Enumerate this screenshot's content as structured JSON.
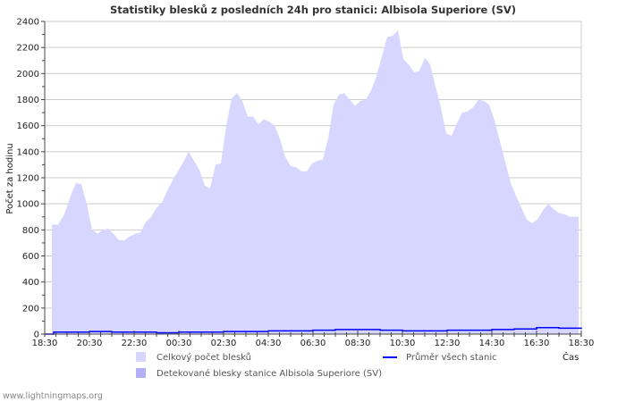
{
  "chart_data": {
    "type": "area",
    "title": "Statistiky blesků z posledních 24h pro stanici: Albisola Superiore (SV)",
    "xlabel": "Čas",
    "ylabel": "Počet za hodinu",
    "ylim": [
      0,
      2400
    ],
    "yticks": [
      "0",
      "200",
      "400",
      "600",
      "800",
      "1000",
      "1200",
      "1400",
      "1600",
      "1800",
      "2000",
      "2200",
      "2400"
    ],
    "xticks": [
      "18:30",
      "20:30",
      "22:30",
      "00:30",
      "02:30",
      "04:30",
      "06:30",
      "08:30",
      "10:30",
      "12:30",
      "14:30",
      "16:30",
      "18:30"
    ],
    "grid": true,
    "legend_placement": "bottom",
    "series": [
      {
        "name": "Celkový počet blesků",
        "color": "#d6d6ff",
        "x_hours": [
          0.32,
          0.6,
          0.88,
          1.2,
          1.4,
          1.64,
          1.88,
          2.12,
          2.36,
          2.6,
          2.84,
          3.08,
          3.32,
          3.56,
          3.8,
          4.04,
          4.28,
          4.52,
          4.76,
          5.0,
          5.24,
          5.48,
          5.72,
          5.96,
          6.2,
          6.44,
          6.68,
          6.92,
          7.16,
          7.4,
          7.64,
          7.88,
          8.12,
          8.36,
          8.6,
          8.84,
          9.08,
          9.32,
          9.56,
          9.8,
          10.04,
          10.28,
          10.52,
          10.76,
          11.0,
          11.24,
          11.48,
          11.72,
          11.96,
          12.2,
          12.44,
          12.68,
          12.92,
          13.16,
          13.4,
          13.64,
          13.88,
          14.12,
          14.36,
          14.6,
          14.84,
          15.08,
          15.32,
          15.56,
          15.8,
          16.04,
          16.28,
          16.52,
          16.76,
          17.0,
          17.24,
          17.48,
          17.72,
          17.96,
          18.2,
          18.44,
          18.68,
          18.92,
          19.16,
          19.4,
          19.64,
          19.88,
          20.12,
          20.36,
          20.6,
          20.84,
          21.08,
          21.32,
          21.56,
          21.8,
          22.04,
          22.28,
          22.52,
          22.76,
          23.0,
          23.24,
          23.48,
          23.72,
          23.88
        ],
        "values": [
          840,
          840,
          920,
          1080,
          1160,
          1150,
          1000,
          800,
          770,
          800,
          810,
          770,
          720,
          720,
          750,
          770,
          780,
          860,
          900,
          970,
          1010,
          1100,
          1180,
          1250,
          1320,
          1400,
          1330,
          1260,
          1140,
          1120,
          1300,
          1310,
          1600,
          1810,
          1850,
          1790,
          1670,
          1670,
          1610,
          1650,
          1630,
          1600,
          1500,
          1360,
          1290,
          1280,
          1250,
          1250,
          1310,
          1330,
          1340,
          1500,
          1760,
          1840,
          1850,
          1800,
          1750,
          1790,
          1800,
          1870,
          1980,
          2130,
          2280,
          2290,
          2330,
          2110,
          2070,
          2010,
          2020,
          2120,
          2070,
          1900,
          1740,
          1540,
          1520,
          1620,
          1700,
          1710,
          1740,
          1800,
          1790,
          1760,
          1640,
          1480,
          1320,
          1160,
          1060,
          970,
          880,
          850,
          880,
          950,
          1000,
          960,
          930,
          920,
          900,
          900,
          900
        ]
      },
      {
        "name": "Detekované blesky stanice Albisola Superiore (SV)",
        "color": "#b0b0f8"
      },
      {
        "name": "Průměr všech stanic",
        "color": "#0000ff",
        "x_hours": [
          0,
          0.4,
          1,
          2,
          3,
          4,
          5,
          6,
          7,
          8,
          9,
          10,
          11,
          12,
          13,
          14,
          15,
          16,
          17,
          18,
          19,
          20,
          21,
          22,
          23,
          24
        ],
        "values": [
          0,
          15,
          15,
          20,
          15,
          15,
          10,
          15,
          15,
          20,
          20,
          25,
          25,
          30,
          35,
          35,
          30,
          25,
          25,
          30,
          30,
          35,
          40,
          50,
          45,
          40
        ]
      }
    ]
  },
  "footer": "www.lightningmaps.org"
}
